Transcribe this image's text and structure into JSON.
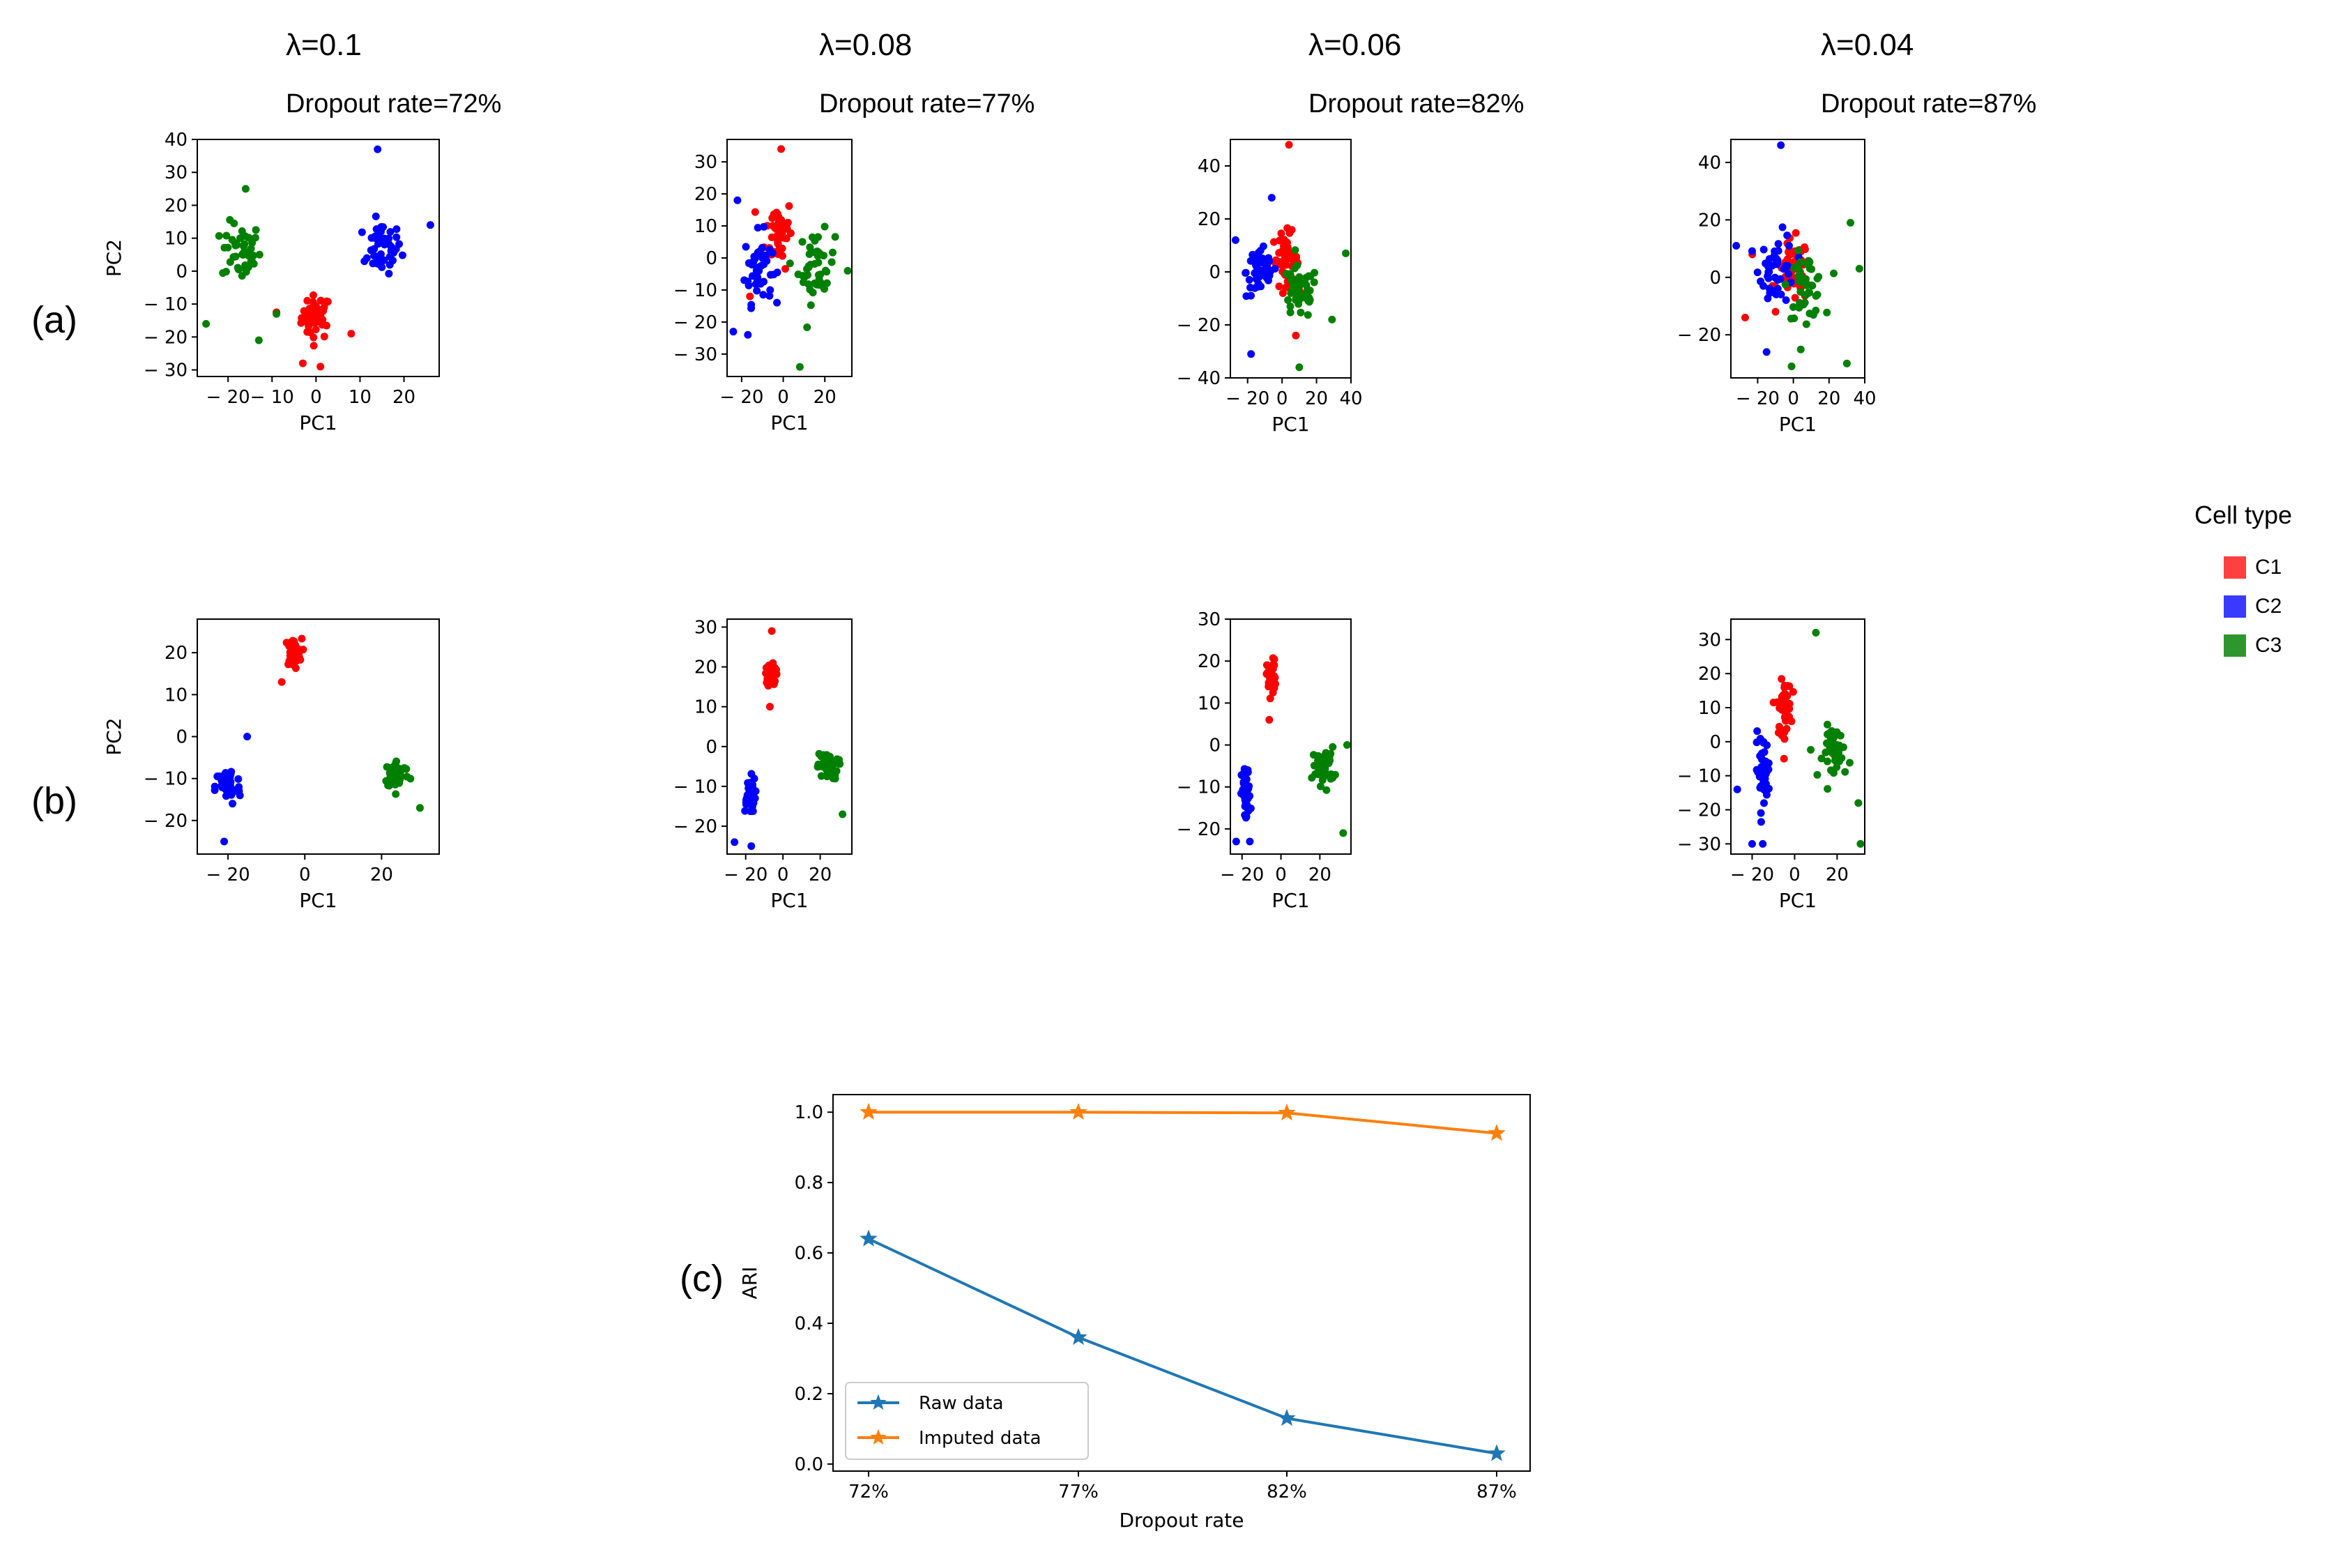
{
  "panel_labels": {
    "a": "(a)",
    "b": "(b)",
    "c": "(c)"
  },
  "columns": [
    {
      "lambda": "λ=0.1",
      "dropout": "Dropout rate=72%"
    },
    {
      "lambda": "λ=0.08",
      "dropout": "Dropout rate=77%"
    },
    {
      "lambda": "λ=0.06",
      "dropout": "Dropout rate=82%"
    },
    {
      "lambda": "λ=0.04",
      "dropout": "Dropout rate=87%"
    }
  ],
  "legend": {
    "title": "Cell type",
    "items": [
      {
        "label": "C1",
        "color": "#ff4040"
      },
      {
        "label": "C2",
        "color": "#3a3aff"
      },
      {
        "label": "C3",
        "color": "#2e962e"
      }
    ]
  },
  "colors": {
    "C1": "#ff0000",
    "C2": "#0000ff",
    "C3": "#008000",
    "raw": "#1f77b4",
    "imputed": "#ff7f0e"
  },
  "chart_data": [
    {
      "id": "a1",
      "type": "scatter",
      "xlabel": "PC1",
      "ylabel": "PC2",
      "xlim": [
        -27,
        28
      ],
      "ylim": [
        -32,
        40
      ],
      "xticks": [
        -20,
        -10,
        0,
        10,
        20
      ],
      "yticks": [
        -30,
        -20,
        -10,
        0,
        10,
        20,
        30,
        40
      ],
      "clusters": [
        {
          "name": "C1",
          "center": [
            0,
            -14
          ],
          "spread": [
            3,
            6
          ],
          "n": 45,
          "outliers": [
            [
              -9,
              -12.5
            ],
            [
              -3,
              -28
            ],
            [
              1,
              -29
            ],
            [
              8,
              -19
            ]
          ]
        },
        {
          "name": "C2",
          "center": [
            15,
            7
          ],
          "spread": [
            4,
            7
          ],
          "n": 45,
          "outliers": [
            [
              14,
              37
            ],
            [
              26,
              14
            ],
            [
              11,
              3
            ]
          ]
        },
        {
          "name": "C3",
          "center": [
            -17,
            6
          ],
          "spread": [
            4,
            8
          ],
          "n": 45,
          "outliers": [
            [
              -25,
              -16
            ],
            [
              -13,
              -21
            ],
            [
              -16,
              25
            ],
            [
              -9,
              -13
            ]
          ]
        }
      ]
    },
    {
      "id": "a2",
      "type": "scatter",
      "xlabel": "PC1",
      "ylabel": "PC2",
      "xlim": [
        -27,
        33
      ],
      "ylim": [
        -37,
        37
      ],
      "xticks": [
        -20,
        0,
        20
      ],
      "yticks": [
        -30,
        -20,
        -10,
        0,
        10,
        20,
        30
      ],
      "clusters": [
        {
          "name": "C1",
          "center": [
            -2,
            8
          ],
          "spread": [
            6,
            10
          ],
          "n": 45,
          "outliers": [
            [
              -1,
              34
            ],
            [
              -16,
              -12
            ]
          ]
        },
        {
          "name": "C2",
          "center": [
            -12,
            -3
          ],
          "spread": [
            6,
            10
          ],
          "n": 45,
          "outliers": [
            [
              -22,
              18
            ],
            [
              -24,
              -23
            ],
            [
              -17,
              -24
            ]
          ]
        },
        {
          "name": "C3",
          "center": [
            16,
            -3
          ],
          "spread": [
            8,
            10
          ],
          "n": 45,
          "outliers": [
            [
              8,
              -34
            ],
            [
              31,
              -4
            ]
          ]
        }
      ]
    },
    {
      "id": "a3",
      "type": "scatter",
      "xlabel": "PC1",
      "ylabel": "PC2",
      "xlim": [
        -30,
        40
      ],
      "ylim": [
        -40,
        50
      ],
      "xticks": [
        -20,
        0,
        20,
        40
      ],
      "yticks": [
        -40,
        -20,
        0,
        20,
        40
      ],
      "clusters": [
        {
          "name": "C1",
          "center": [
            2,
            5
          ],
          "spread": [
            7,
            9
          ],
          "n": 45,
          "outliers": [
            [
              4,
              48
            ],
            [
              8,
              -24
            ]
          ]
        },
        {
          "name": "C2",
          "center": [
            -12,
            0
          ],
          "spread": [
            8,
            9
          ],
          "n": 45,
          "outliers": [
            [
              -27,
              12
            ],
            [
              -18,
              -31
            ],
            [
              -6,
              28
            ]
          ]
        },
        {
          "name": "C3",
          "center": [
            10,
            -8
          ],
          "spread": [
            10,
            9
          ],
          "n": 45,
          "outliers": [
            [
              10,
              -36
            ],
            [
              37,
              7
            ],
            [
              29,
              -18
            ]
          ]
        }
      ]
    },
    {
      "id": "a4",
      "type": "scatter",
      "xlabel": "PC1",
      "ylabel": "PC2",
      "xlim": [
        -35,
        40
      ],
      "ylim": [
        -35,
        48
      ],
      "xticks": [
        -20,
        0,
        20,
        40
      ],
      "yticks": [
        -20,
        0,
        20,
        40
      ],
      "clusters": [
        {
          "name": "C1",
          "center": [
            0,
            2
          ],
          "spread": [
            8,
            10
          ],
          "n": 45,
          "outliers": [
            [
              -27,
              -14
            ],
            [
              -23,
              8
            ]
          ]
        },
        {
          "name": "C2",
          "center": [
            -9,
            3
          ],
          "spread": [
            9,
            11
          ],
          "n": 45,
          "outliers": [
            [
              -7,
              46
            ],
            [
              -32,
              11
            ],
            [
              -15,
              -26
            ]
          ]
        },
        {
          "name": "C3",
          "center": [
            7,
            -3
          ],
          "spread": [
            9,
            10
          ],
          "n": 45,
          "outliers": [
            [
              30,
              -30
            ],
            [
              -1,
              -31
            ],
            [
              37,
              3
            ],
            [
              32,
              19
            ]
          ]
        }
      ]
    },
    {
      "id": "b1",
      "type": "scatter",
      "xlabel": "PC1",
      "ylabel": "PC2",
      "xlim": [
        -28,
        35
      ],
      "ylim": [
        -28,
        28
      ],
      "xticks": [
        -20,
        0,
        20
      ],
      "yticks": [
        -20,
        -10,
        0,
        10,
        20
      ],
      "clusters": [
        {
          "name": "C1",
          "center": [
            -3,
            20
          ],
          "spread": [
            2,
            3
          ],
          "n": 45,
          "outliers": [
            [
              -6,
              13
            ]
          ]
        },
        {
          "name": "C2",
          "center": [
            -20,
            -12
          ],
          "spread": [
            3,
            4
          ],
          "n": 45,
          "outliers": [
            [
              -15,
              0
            ],
            [
              -21,
              -25
            ]
          ]
        },
        {
          "name": "C3",
          "center": [
            24,
            -9
          ],
          "spread": [
            3,
            3
          ],
          "n": 45,
          "outliers": [
            [
              30,
              -17
            ]
          ]
        }
      ]
    },
    {
      "id": "b2",
      "type": "scatter",
      "xlabel": "PC1",
      "ylabel": "PC2",
      "xlim": [
        -30,
        37
      ],
      "ylim": [
        -27,
        32
      ],
      "xticks": [
        -20,
        0,
        20
      ],
      "yticks": [
        -20,
        -10,
        0,
        10,
        20,
        30
      ],
      "clusters": [
        {
          "name": "C1",
          "center": [
            -6,
            18
          ],
          "spread": [
            2,
            3
          ],
          "n": 45,
          "outliers": [
            [
              -7,
              10
            ],
            [
              -6,
              29
            ]
          ]
        },
        {
          "name": "C2",
          "center": [
            -18,
            -12
          ],
          "spread": [
            3,
            4
          ],
          "n": 45,
          "outliers": [
            [
              -26,
              -24
            ],
            [
              -17,
              -25
            ]
          ]
        },
        {
          "name": "C3",
          "center": [
            24,
            -5
          ],
          "spread": [
            5,
            3
          ],
          "n": 45,
          "outliers": [
            [
              32,
              -17
            ]
          ]
        }
      ]
    },
    {
      "id": "b3",
      "type": "scatter",
      "xlabel": "PC1",
      "ylabel": "PC2",
      "xlim": [
        -26,
        36
      ],
      "ylim": [
        -26,
        30
      ],
      "xticks": [
        -20,
        0,
        20
      ],
      "yticks": [
        -20,
        -10,
        0,
        10,
        20,
        30
      ],
      "clusters": [
        {
          "name": "C1",
          "center": [
            -5,
            16
          ],
          "spread": [
            2,
            4
          ],
          "n": 45,
          "outliers": [
            [
              -6,
              6
            ]
          ]
        },
        {
          "name": "C2",
          "center": [
            -18,
            -12
          ],
          "spread": [
            2,
            6
          ],
          "n": 45,
          "outliers": [
            [
              -23,
              -23
            ],
            [
              -16,
              -23
            ]
          ]
        },
        {
          "name": "C3",
          "center": [
            22,
            -5
          ],
          "spread": [
            5,
            4
          ],
          "n": 45,
          "outliers": [
            [
              34,
              0
            ],
            [
              32,
              -21
            ]
          ]
        }
      ]
    },
    {
      "id": "b4",
      "type": "scatter",
      "xlabel": "PC1",
      "ylabel": "PC2",
      "xlim": [
        -30,
        33
      ],
      "ylim": [
        -33,
        36
      ],
      "xticks": [
        -20,
        0,
        20
      ],
      "yticks": [
        -30,
        -20,
        -10,
        0,
        10,
        20,
        30
      ],
      "clusters": [
        {
          "name": "C1",
          "center": [
            -5,
            10
          ],
          "spread": [
            3,
            7
          ],
          "n": 45,
          "outliers": [
            [
              -5,
              -5
            ]
          ]
        },
        {
          "name": "C2",
          "center": [
            -15,
            -8
          ],
          "spread": [
            3,
            9
          ],
          "n": 45,
          "outliers": [
            [
              -27,
              -14
            ],
            [
              -20,
              -30
            ],
            [
              -15,
              -30
            ]
          ]
        },
        {
          "name": "C3",
          "center": [
            20,
            -3
          ],
          "spread": [
            6,
            7
          ],
          "n": 45,
          "outliers": [
            [
              10,
              32
            ],
            [
              31,
              -30
            ],
            [
              30,
              -18
            ]
          ]
        }
      ]
    },
    {
      "id": "c",
      "type": "line",
      "xlabel": "Dropout rate",
      "ylabel": "ARI",
      "categories": [
        "72%",
        "77%",
        "82%",
        "87%"
      ],
      "ylim": [
        -0.02,
        1.05
      ],
      "yticks": [
        0.0,
        0.2,
        0.4,
        0.6,
        0.8,
        1.0
      ],
      "series": [
        {
          "name": "Raw data",
          "values": [
            0.64,
            0.36,
            0.13,
            0.03
          ]
        },
        {
          "name": "Imputed data",
          "values": [
            1.0,
            1.0,
            0.998,
            0.94
          ]
        }
      ]
    }
  ]
}
